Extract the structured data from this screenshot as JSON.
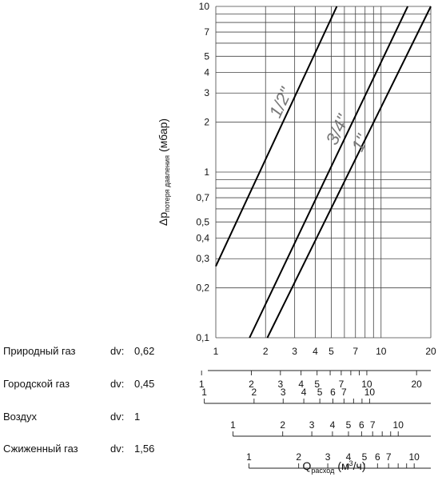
{
  "chart_data": {
    "type": "line",
    "x_scale": "log",
    "y_scale": "log",
    "xlim": [
      1,
      20
    ],
    "ylim": [
      0.1,
      10
    ],
    "grid": true,
    "x_ticks": [
      1,
      2,
      3,
      4,
      5,
      7,
      10,
      20
    ],
    "y_ticks": [
      0.1,
      0.2,
      0.3,
      0.4,
      0.5,
      0.7,
      1,
      2,
      3,
      4,
      5,
      7,
      10
    ],
    "y_tick_labels": [
      "0,1",
      "0,2",
      "0,3",
      "0,4",
      "0,5",
      "0,7",
      "1",
      "2",
      "3",
      "4",
      "5",
      "7",
      "10"
    ],
    "x_tick_labels": [
      "1",
      "2",
      "3",
      "4",
      "5",
      "7",
      "10",
      "20"
    ],
    "ylabel": {
      "main": "Δp",
      "sub": "потеря давления",
      "unit": "(мбар)"
    },
    "xlabel": {
      "main": "Q",
      "sub": "расход",
      "unit_prefix": "(м",
      "unit_sup": "3",
      "unit_suffix": "/ч)"
    },
    "series": [
      {
        "name": "1/2\"",
        "x": [
          1,
          5.4
        ],
        "y": [
          0.27,
          10
        ]
      },
      {
        "name": "3/4\"",
        "x": [
          1.6,
          14.5
        ],
        "y": [
          0.1,
          10
        ]
      },
      {
        "name": "1\"",
        "x": [
          2.05,
          20
        ],
        "y": [
          0.1,
          10
        ]
      }
    ],
    "gas_scales": [
      {
        "name": "Природный газ",
        "dv_label": "dv:",
        "dv": "0,62",
        "factor": 0.62,
        "ticks": [
          1,
          2,
          3,
          4,
          5,
          7,
          10,
          20
        ],
        "tick_labels": [
          "1",
          "2",
          "3",
          "4",
          "5",
          "7",
          "10",
          "20"
        ]
      },
      {
        "name": "Городской газ",
        "dv_label": "dv:",
        "dv": "0,45",
        "factor": 0.45,
        "ticks": [
          1,
          2,
          3,
          4,
          5,
          6,
          7,
          10
        ],
        "tick_labels": [
          "1",
          "2",
          "3",
          "4",
          "5",
          "6",
          "7",
          "10"
        ]
      },
      {
        "name": "Воздух",
        "dv_label": "dv:",
        "dv": "1",
        "factor": 1,
        "ticks": [
          1,
          2,
          3,
          4,
          5,
          6,
          7,
          10
        ],
        "tick_labels": [
          "1",
          "2",
          "3",
          "4",
          "5",
          "6",
          "7",
          "10"
        ]
      },
      {
        "name": "Сжиженный газ",
        "dv_label": "dv:",
        "dv": "1,56",
        "factor": 1.56,
        "ticks": [
          1,
          2,
          3,
          4,
          5,
          6,
          7,
          10
        ],
        "tick_labels": [
          "1",
          "2",
          "3",
          "4",
          "5",
          "6",
          "7",
          "10"
        ]
      }
    ]
  }
}
